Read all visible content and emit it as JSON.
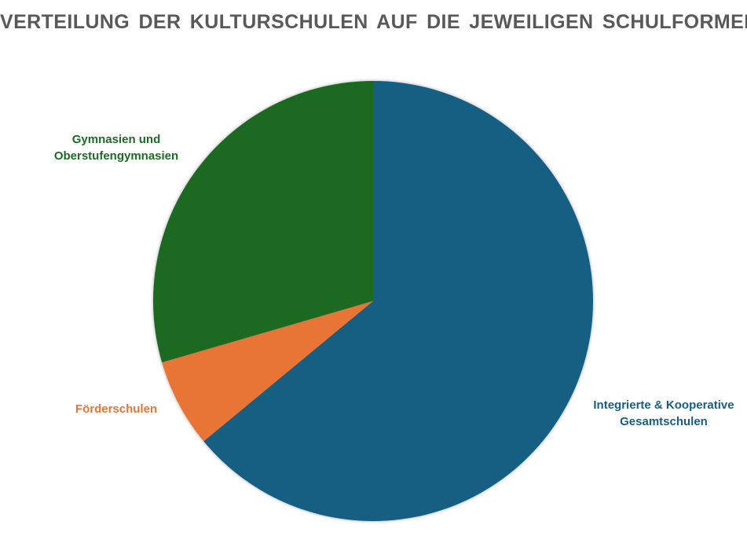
{
  "chart_data": {
    "type": "pie",
    "title": "VERTEILUNG DER KULTURSCHULEN AUF DIE JEWEILIGEN SCHULFORMEN",
    "slices": [
      {
        "label_lines": [
          "Integrierte & Kooperative",
          "Gesamtschulen"
        ],
        "value": 64,
        "color": "#175E82"
      },
      {
        "label_lines": [
          "Förderschulen"
        ],
        "value": 6.5,
        "color": "#E87435"
      },
      {
        "label_lines": [
          "Gymnasien und",
          "Oberstufengymnasien"
        ],
        "value": 29.5,
        "color": "#1B6B24"
      }
    ],
    "legend": "none",
    "start_angle_deg": 0,
    "direction": "clockwise"
  }
}
